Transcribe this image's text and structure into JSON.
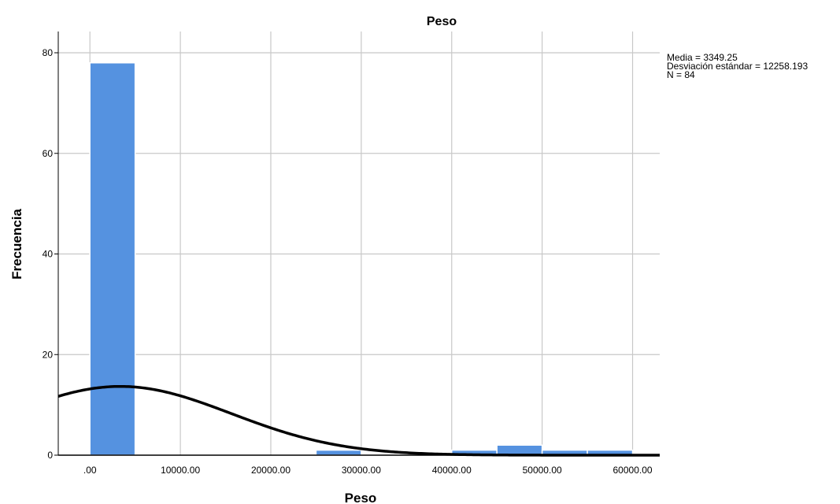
{
  "chart_data": {
    "type": "bar",
    "title": "Peso",
    "xlabel": "Peso",
    "ylabel": "Frecuencia",
    "xlim": [
      -3500,
      63000
    ],
    "ylim": [
      0,
      80
    ],
    "x_ticks": [
      0,
      10000,
      20000,
      30000,
      40000,
      50000,
      60000
    ],
    "x_tick_labels": [
      ".00",
      "10000.00",
      "20000.00",
      "30000.00",
      "40000.00",
      "50000.00",
      "60000.00"
    ],
    "y_ticks": [
      0,
      20,
      40,
      60,
      80
    ],
    "y_tick_labels": [
      "0",
      "20",
      "40",
      "60",
      "80"
    ],
    "grid": true,
    "bins": [
      {
        "x0": 0,
        "x1": 5000,
        "count": 78
      },
      {
        "x0": 5000,
        "x1": 10000,
        "count": 0
      },
      {
        "x0": 10000,
        "x1": 15000,
        "count": 0
      },
      {
        "x0": 15000,
        "x1": 20000,
        "count": 0
      },
      {
        "x0": 20000,
        "x1": 25000,
        "count": 0
      },
      {
        "x0": 25000,
        "x1": 30000,
        "count": 1
      },
      {
        "x0": 30000,
        "x1": 35000,
        "count": 0
      },
      {
        "x0": 35000,
        "x1": 40000,
        "count": 0
      },
      {
        "x0": 40000,
        "x1": 45000,
        "count": 1
      },
      {
        "x0": 45000,
        "x1": 50000,
        "count": 2
      },
      {
        "x0": 50000,
        "x1": 55000,
        "count": 1
      },
      {
        "x0": 55000,
        "x1": 60000,
        "count": 1
      }
    ],
    "normal_curve": {
      "mean": 3349.25,
      "sd": 12258.193,
      "n": 84,
      "bin_width": 5000
    },
    "bar_color": "#5592e0",
    "bar_edge_color": "#ffffff",
    "curve_color": "#000000"
  },
  "stats": {
    "media": "Media = 3349.25",
    "desviacion": "Desviación estándar = 12258.193",
    "n": "N = 84"
  }
}
